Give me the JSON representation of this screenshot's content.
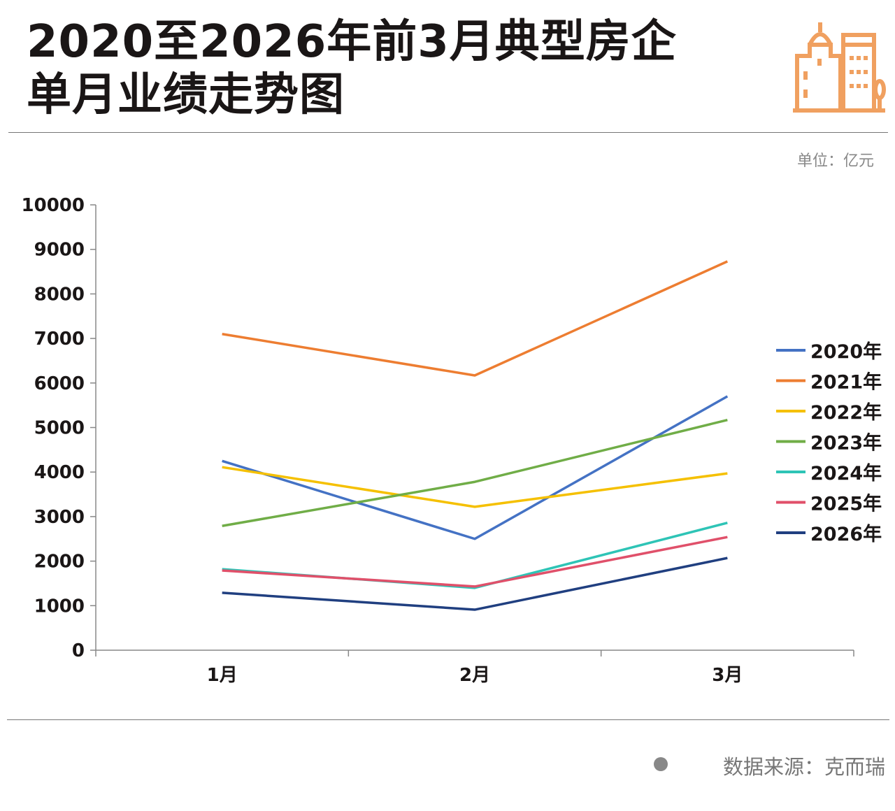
{
  "header": {
    "title_line1": "2020至2026年前3月典型房企",
    "title_line2": "单月业绩走势图",
    "icon": "city-buildings-icon",
    "icon_color": "#f0a060"
  },
  "unit_label": "单位：亿元",
  "source_label": "数据来源：克而瑞",
  "chart_data": {
    "type": "line",
    "title": "2020至2026年前3月典型房企单月业绩走势图",
    "ylabel": "单位：亿元",
    "categories": [
      "1月",
      "2月",
      "3月"
    ],
    "ylim": [
      0,
      10000
    ],
    "yticks": [
      0,
      1000,
      2000,
      3000,
      4000,
      5000,
      6000,
      7000,
      8000,
      9000,
      10000
    ],
    "grid": false,
    "legend": "right",
    "series": [
      {
        "name": "2020年",
        "color": "#4472c4",
        "values": [
          4250,
          2500,
          5700
        ]
      },
      {
        "name": "2021年",
        "color": "#ed7d31",
        "values": [
          7100,
          6170,
          8730
        ]
      },
      {
        "name": "2022年",
        "color": "#f5c000",
        "values": [
          4110,
          3220,
          3970
        ]
      },
      {
        "name": "2023年",
        "color": "#70ad47",
        "values": [
          2790,
          3780,
          5170
        ]
      },
      {
        "name": "2024年",
        "color": "#2ec4b6",
        "values": [
          1820,
          1400,
          2860
        ]
      },
      {
        "name": "2025年",
        "color": "#e0506a",
        "values": [
          1790,
          1430,
          2540
        ]
      },
      {
        "name": "2026年",
        "color": "#203f80",
        "values": [
          1290,
          910,
          2070
        ]
      }
    ]
  }
}
